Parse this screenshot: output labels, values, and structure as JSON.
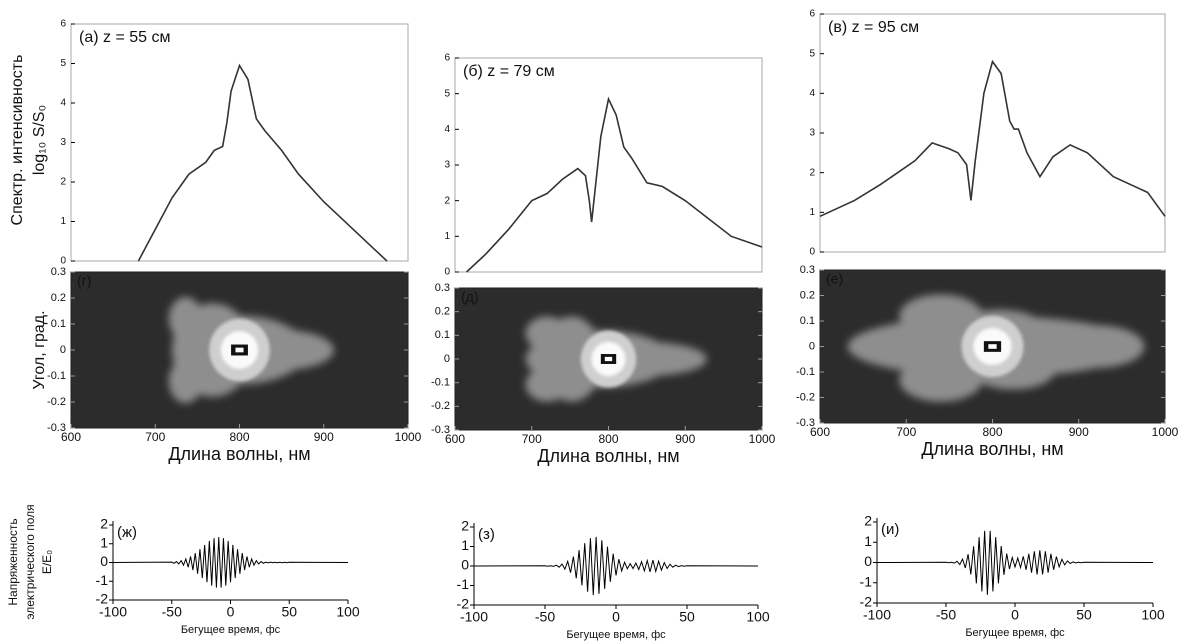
{
  "chart_data": [
    {
      "type": "line",
      "title": "(а) z = 55 см",
      "ylabel": [
        "Спектр. интенсивность",
        "log₁₀ S/S₀"
      ],
      "x": [
        680,
        700,
        720,
        740,
        760,
        770,
        780,
        785,
        790,
        800,
        810,
        820,
        830,
        850,
        870,
        900,
        930,
        960,
        975
      ],
      "values": [
        0,
        0.8,
        1.6,
        2.2,
        2.5,
        2.8,
        2.9,
        3.5,
        4.3,
        4.95,
        4.6,
        3.6,
        3.3,
        2.8,
        2.2,
        1.5,
        0.9,
        0.3,
        0
      ],
      "color": "#333333",
      "xlim": [
        600,
        1000
      ],
      "ylim": [
        0,
        6
      ],
      "yticks": [
        0,
        1,
        2,
        3,
        4,
        5,
        6
      ]
    },
    {
      "type": "line",
      "title": "(б) z = 79 см",
      "x": [
        615,
        640,
        670,
        700,
        720,
        740,
        760,
        770,
        775,
        778,
        782,
        790,
        800,
        810,
        820,
        830,
        850,
        870,
        900,
        930,
        960,
        1000
      ],
      "values": [
        0,
        0.5,
        1.2,
        2.0,
        2.2,
        2.6,
        2.9,
        2.7,
        2.0,
        1.4,
        2.2,
        3.8,
        4.85,
        4.4,
        3.5,
        3.2,
        2.5,
        2.4,
        2.0,
        1.5,
        1.0,
        0.7
      ],
      "color": "#333333",
      "xlim": [
        600,
        1000
      ],
      "ylim": [
        0,
        6
      ],
      "yticks": [
        0,
        1,
        2,
        3,
        4,
        5,
        6
      ]
    },
    {
      "type": "line",
      "title": "(в) z = 95 см",
      "x": [
        600,
        640,
        670,
        690,
        710,
        730,
        750,
        760,
        770,
        775,
        780,
        790,
        800,
        810,
        820,
        825,
        830,
        840,
        855,
        870,
        890,
        910,
        940,
        960,
        980,
        1000
      ],
      "values": [
        0.9,
        1.3,
        1.7,
        2.0,
        2.3,
        2.75,
        2.6,
        2.5,
        2.2,
        1.3,
        2.3,
        4.0,
        4.8,
        4.5,
        3.3,
        3.1,
        3.1,
        2.5,
        1.9,
        2.4,
        2.7,
        2.5,
        1.9,
        1.7,
        1.5,
        0.9
      ],
      "color": "#333333",
      "xlim": [
        600,
        1000
      ],
      "ylim": [
        0,
        6
      ],
      "yticks": [
        0,
        1,
        2,
        3,
        4,
        5,
        6
      ]
    },
    {
      "type": "heatmap",
      "title": "(г)",
      "ylabel": "Угол, град.",
      "xlabel": "Длина волны, нм",
      "xlim": [
        600,
        1000
      ],
      "ylim": [
        -0.3,
        0.3
      ],
      "xticks": [
        600,
        700,
        800,
        900,
        1000
      ],
      "yticks": [
        -0.3,
        -0.2,
        -0.1,
        0,
        0.1,
        0.2,
        0.3
      ]
    },
    {
      "type": "heatmap",
      "title": "(д)",
      "xlabel": "Длина волны, нм",
      "xlim": [
        600,
        1000
      ],
      "ylim": [
        -0.3,
        0.3
      ],
      "xticks": [
        600,
        700,
        800,
        900,
        1000
      ],
      "yticks": [
        -0.3,
        -0.2,
        -0.1,
        0,
        0.1,
        0.2,
        0.3
      ]
    },
    {
      "type": "heatmap",
      "title": "(е)",
      "xlabel": "Длина волны, нм",
      "xlim": [
        600,
        1000
      ],
      "ylim": [
        -0.3,
        0.3
      ],
      "xticks": [
        600,
        700,
        800,
        900,
        1000
      ],
      "yticks": [
        -0.3,
        -0.2,
        -0.1,
        0,
        0.1,
        0.2,
        0.3
      ]
    },
    {
      "type": "line",
      "title": "(ж)",
      "ylabel": [
        "Напряженность",
        "электрического поля",
        "E/E₀"
      ],
      "xlabel": "Бегущее время, фс",
      "x": [
        -100,
        -50,
        -48,
        -46,
        -44,
        -42,
        -40,
        -38,
        -36,
        -34,
        -32,
        -30,
        -28,
        -26,
        -24,
        -22,
        -20,
        -18,
        -16,
        -14,
        -12,
        -10,
        -8,
        -6,
        -4,
        -2,
        0,
        2,
        4,
        6,
        8,
        10,
        12,
        14,
        16,
        18,
        20,
        22,
        24,
        26,
        28,
        30,
        32,
        34,
        36,
        38,
        40,
        42,
        44,
        46,
        48,
        50,
        100
      ],
      "values": [
        0,
        0.02,
        -0.04,
        0.05,
        -0.08,
        0.1,
        -0.14,
        0.19,
        -0.25,
        0.32,
        -0.4,
        0.5,
        -0.6,
        0.71,
        -0.83,
        0.94,
        -1.05,
        1.15,
        -1.23,
        1.3,
        -1.34,
        1.35,
        -1.34,
        1.3,
        -1.23,
        1.15,
        -1.05,
        0.94,
        -0.83,
        0.71,
        -0.6,
        0.5,
        -0.4,
        0.32,
        -0.25,
        0.19,
        -0.14,
        0.1,
        -0.08,
        0.05,
        -0.04,
        0.02,
        -0.02,
        0.02,
        -0.01,
        0.01,
        -0.01,
        0.01,
        -0.01,
        0.01,
        -0.01,
        0.01,
        0
      ],
      "color": "#000000",
      "xlim": [
        -100,
        100
      ],
      "ylim": [
        -2,
        2
      ],
      "xticks": [
        -100,
        -50,
        0,
        50,
        100
      ],
      "yticks": [
        -2,
        -1,
        0,
        1,
        2
      ]
    },
    {
      "type": "line",
      "title": "(з)",
      "xlabel": "Бегущее время, фс",
      "x": [
        -100,
        -50,
        -48,
        -46,
        -44,
        -42,
        -40,
        -38,
        -36,
        -34,
        -32,
        -30,
        -28,
        -26,
        -24,
        -22,
        -20,
        -18,
        -16,
        -14,
        -12,
        -10,
        -8,
        -6,
        -4,
        -2,
        0,
        2,
        4,
        6,
        8,
        10,
        12,
        14,
        16,
        18,
        20,
        22,
        24,
        26,
        28,
        30,
        32,
        34,
        36,
        38,
        40,
        42,
        44,
        46,
        48,
        50,
        100
      ],
      "values": [
        0,
        0.01,
        -0.01,
        0.01,
        -0.02,
        0.04,
        -0.06,
        0.1,
        -0.16,
        0.24,
        -0.34,
        0.48,
        -0.63,
        0.81,
        -0.99,
        1.17,
        -1.32,
        1.43,
        -1.49,
        1.49,
        -1.43,
        1.32,
        -1.17,
        0.99,
        -0.81,
        0.63,
        -0.48,
        0.35,
        -0.25,
        0.19,
        -0.14,
        0.12,
        -0.13,
        0.15,
        -0.18,
        0.22,
        -0.25,
        0.28,
        -0.3,
        0.3,
        -0.28,
        0.25,
        -0.21,
        0.17,
        -0.13,
        0.09,
        -0.06,
        0.04,
        -0.03,
        0.02,
        -0.01,
        0.01,
        0
      ],
      "color": "#000000",
      "xlim": [
        -100,
        100
      ],
      "ylim": [
        -2,
        2
      ],
      "xticks": [
        -100,
        -50,
        0,
        50,
        100
      ],
      "yticks": [
        -2,
        -1,
        0,
        1,
        2
      ]
    },
    {
      "type": "line",
      "title": "(и)",
      "xlabel": "Бегущее время, фс",
      "x": [
        -100,
        -50,
        -48,
        -46,
        -44,
        -42,
        -40,
        -38,
        -36,
        -34,
        -32,
        -30,
        -28,
        -26,
        -24,
        -22,
        -20,
        -18,
        -16,
        -14,
        -12,
        -10,
        -8,
        -6,
        -4,
        -2,
        0,
        2,
        4,
        6,
        8,
        10,
        12,
        14,
        16,
        18,
        20,
        22,
        24,
        26,
        28,
        30,
        32,
        34,
        36,
        38,
        40,
        42,
        44,
        46,
        48,
        50,
        100
      ],
      "values": [
        0,
        0.01,
        -0.01,
        0.01,
        -0.03,
        0.06,
        -0.1,
        0.17,
        -0.27,
        0.41,
        -0.59,
        0.8,
        -1.03,
        1.25,
        -1.43,
        1.56,
        -1.6,
        1.56,
        -1.43,
        1.25,
        -1.03,
        0.81,
        -0.61,
        0.44,
        -0.32,
        0.25,
        -0.22,
        0.22,
        -0.25,
        0.3,
        -0.36,
        0.43,
        -0.5,
        0.55,
        -0.59,
        0.6,
        -0.59,
        0.55,
        -0.5,
        0.43,
        -0.36,
        0.29,
        -0.22,
        0.16,
        -0.12,
        0.08,
        -0.05,
        0.03,
        -0.02,
        0.01,
        -0.01,
        0.01,
        0
      ],
      "color": "#000000",
      "xlim": [
        -100,
        100
      ],
      "ylim": [
        -2,
        2
      ],
      "xticks": [
        -100,
        -50,
        0,
        50,
        100
      ],
      "yticks": [
        -2,
        -1,
        0,
        1,
        2
      ]
    }
  ]
}
